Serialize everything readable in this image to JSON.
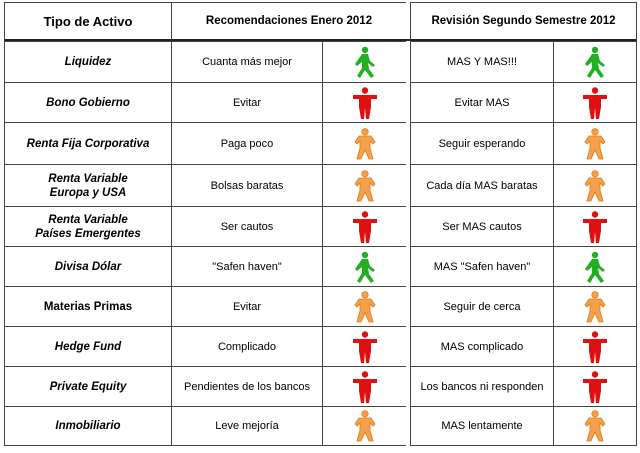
{
  "headers": {
    "col1": "Tipo de Activo",
    "col2": "Recomendaciones Enero 2012",
    "col3": "Revisión Segundo Semestre 2012"
  },
  "colors": {
    "green": "#22b022",
    "red": "#dd1111",
    "orange": "#f5a04a"
  },
  "rows": [
    {
      "asset": "Liquidez",
      "italic": true,
      "rec": "Cuanta más mejor",
      "rec_icon": "green",
      "rev": "MAS Y MAS!!!",
      "rev_icon": "green"
    },
    {
      "asset": "Bono Gobierno",
      "italic": true,
      "rec": "Evitar",
      "rec_icon": "red",
      "rev": "Evitar MAS",
      "rev_icon": "red"
    },
    {
      "asset": "Renta Fija Corporativa",
      "italic": true,
      "rec": "Paga poco",
      "rec_icon": "orange",
      "rev": "Seguir esperando",
      "rev_icon": "orange"
    },
    {
      "asset": "Renta Variable\nEuropa y USA",
      "italic": true,
      "rec": "Bolsas baratas",
      "rec_icon": "orange",
      "rev": "Cada día MAS baratas",
      "rev_icon": "orange"
    },
    {
      "asset": "Renta Variable\nPaíses Emergentes",
      "italic": true,
      "rec": "Ser cautos",
      "rec_icon": "red",
      "rev": "Ser MAS cautos",
      "rev_icon": "red"
    },
    {
      "asset": "Divisa Dólar",
      "italic": true,
      "rec": "\"Safen haven\"",
      "rec_icon": "green",
      "rev": "MAS \"Safen haven\"",
      "rev_icon": "green"
    },
    {
      "asset": "Materias Primas",
      "italic": false,
      "rec": "Evitar",
      "rec_icon": "orange",
      "rev": "Seguir de cerca",
      "rev_icon": "orange"
    },
    {
      "asset": "Hedge Fund",
      "italic": true,
      "rec": "Complicado",
      "rec_icon": "red",
      "rev": "MAS complicado",
      "rev_icon": "red"
    },
    {
      "asset": "Private Equity",
      "italic": true,
      "rec": "Pendientes de los bancos",
      "rec_icon": "red",
      "rev": "Los bancos ni responden",
      "rev_icon": "red"
    },
    {
      "asset": "Inmobiliario",
      "italic": true,
      "rec": "Leve mejoría",
      "rec_icon": "orange",
      "rev": "MAS lentamente",
      "rev_icon": "orange"
    }
  ]
}
